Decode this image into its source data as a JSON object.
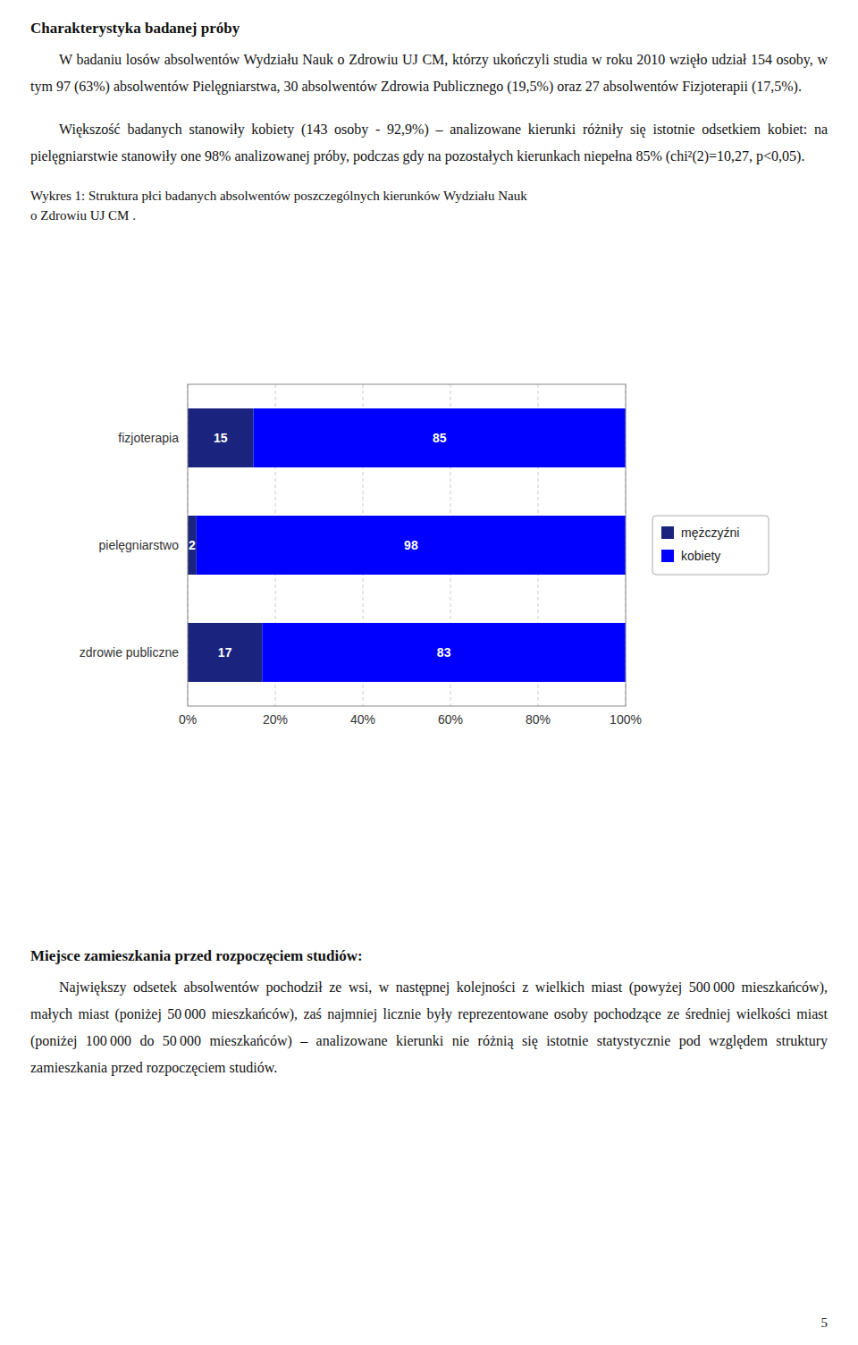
{
  "heading": "Charakterystyka badanej próby",
  "paragraphs": [
    "W badaniu losów absolwentów Wydziału Nauk o Zdrowiu UJ CM, którzy ukończyli studia w roku 2010 wzięło udział 154 osoby, w tym 97 (63%) absolwentów Pielęgniarstwa, 30 absolwentów Zdrowia Publicznego (19,5%) oraz 27 absolwentów Fizjoterapii (17,5%).",
    "Większość badanych stanowiły kobiety (143 osoby - 92,9%) – analizowane kierunki różniły się istotnie odsetkiem kobiet: na pielęgniarstwie stanowiły one 98% analizowanej próby, podczas gdy na pozostałych kierunkach niepełna 85% (chi²(2)=10,27, p<0,05)."
  ],
  "caption": [
    "Wykres 1: Struktura płci badanych absolwentów poszczególnych kierunków Wydziału Nauk",
    "o Zdrowiu UJ CM ."
  ],
  "section_heading": "Miejsce zamieszkania przed rozpoczęciem studiów:",
  "section_paragraph": "Największy odsetek absolwentów pochodził ze wsi, w następnej kolejności z wielkich miast (powyżej 500 000 mieszkańców), małych miast (poniżej 50 000 mieszkańców), zaś najmniej licznie były reprezentowane osoby pochodzące ze średniej wielkości miast (poniżej 100 000 do 50 000 mieszkańców) – analizowane kierunki nie różnią się istotnie statystycznie pod względem struktury zamieszkania przed rozpoczęciem studiów.",
  "page_number": "5",
  "chart_data": {
    "type": "bar",
    "orientation": "horizontal",
    "stacked": true,
    "categories": [
      "fizjoterapia",
      "pielęgniarstwo",
      "zdrowie publiczne"
    ],
    "series": [
      {
        "name": "mężczyźni",
        "color": "#1a237e",
        "values": [
          15,
          2,
          17
        ]
      },
      {
        "name": "kobiety",
        "color": "#0000ff",
        "values": [
          85,
          98,
          83
        ]
      }
    ],
    "xlim": [
      0,
      100
    ],
    "xticks": [
      {
        "value": 0,
        "label": "0%"
      },
      {
        "value": 20,
        "label": "20%"
      },
      {
        "value": 40,
        "label": "40%"
      },
      {
        "value": 60,
        "label": "60%"
      },
      {
        "value": 80,
        "label": "80%"
      },
      {
        "value": 100,
        "label": "100%"
      }
    ],
    "grid": true,
    "legend": "right",
    "data_labels": true
  }
}
